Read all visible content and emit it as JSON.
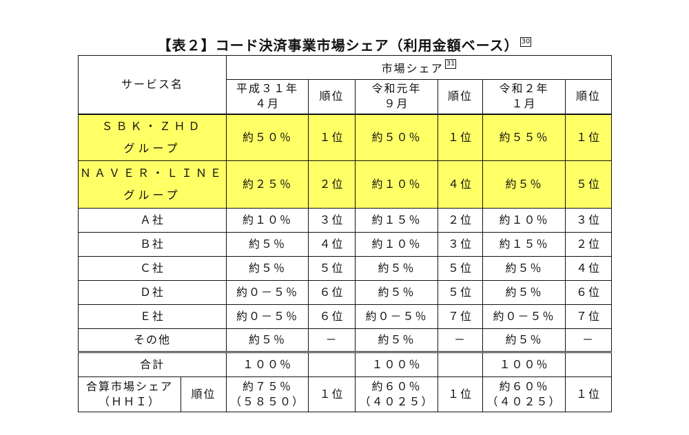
{
  "title": "【表２】コード決済事業市場シェア（利用金額ベース）",
  "title_note": "30",
  "table": {
    "header": {
      "service": "サービス名",
      "share": "市場シェア",
      "share_note": "31",
      "periods": [
        {
          "label": [
            "平成３１年",
            "４月"
          ],
          "rank": "順位"
        },
        {
          "label": [
            "令和元年",
            "９月"
          ],
          "rank": "順位"
        },
        {
          "label": [
            "令和２年",
            "１月"
          ],
          "rank": "順位"
        }
      ]
    },
    "rows": [
      {
        "name": [
          "ＳＢＫ・ＺＨＤ",
          "グループ"
        ],
        "highlight": true,
        "cells": [
          "約５０％",
          "１位",
          "約５０％",
          "１位",
          "約５５％",
          "１位"
        ]
      },
      {
        "name": [
          "ＮＡＶＥＲ・ＬＩＮＥ",
          "グループ"
        ],
        "highlight": true,
        "cells": [
          "約２５％",
          "２位",
          "約１０％",
          "４位",
          "約５％",
          "５位"
        ]
      },
      {
        "name": [
          "Ａ社"
        ],
        "highlight": false,
        "cells": [
          "約１０％",
          "３位",
          "約１５％",
          "２位",
          "約１０％",
          "３位"
        ]
      },
      {
        "name": [
          "Ｂ社"
        ],
        "highlight": false,
        "cells": [
          "約５％",
          "４位",
          "約１０％",
          "３位",
          "約１５％",
          "２位"
        ]
      },
      {
        "name": [
          "Ｃ社"
        ],
        "highlight": false,
        "cells": [
          "約５％",
          "５位",
          "約５％",
          "５位",
          "約５％",
          "４位"
        ]
      },
      {
        "name": [
          "Ｄ社"
        ],
        "highlight": false,
        "cells": [
          "約０－５％",
          "６位",
          "約５％",
          "５位",
          "約５％",
          "６位"
        ]
      },
      {
        "name": [
          "Ｅ社"
        ],
        "highlight": false,
        "cells": [
          "約０－５％",
          "６位",
          "約０－５％",
          "７位",
          "約０－５％",
          "７位"
        ]
      },
      {
        "name": [
          "その他"
        ],
        "highlight": false,
        "cells": [
          "約５％",
          "－",
          "約５％",
          "－",
          "約５％",
          "－"
        ]
      }
    ],
    "total": {
      "label": "合計",
      "values": [
        "１００％",
        "１００％",
        "１００％"
      ]
    },
    "combined": {
      "label": [
        "合算市場シェア",
        "（ＨＨＩ）"
      ],
      "rank_label": "順位",
      "values": [
        [
          "約７５％",
          "（５８５０）"
        ],
        [
          "約６０％",
          "（４０２５）"
        ],
        [
          "約６０％",
          "（４０２５）"
        ]
      ],
      "ranks": [
        "１位",
        "１位",
        "１位"
      ]
    }
  }
}
